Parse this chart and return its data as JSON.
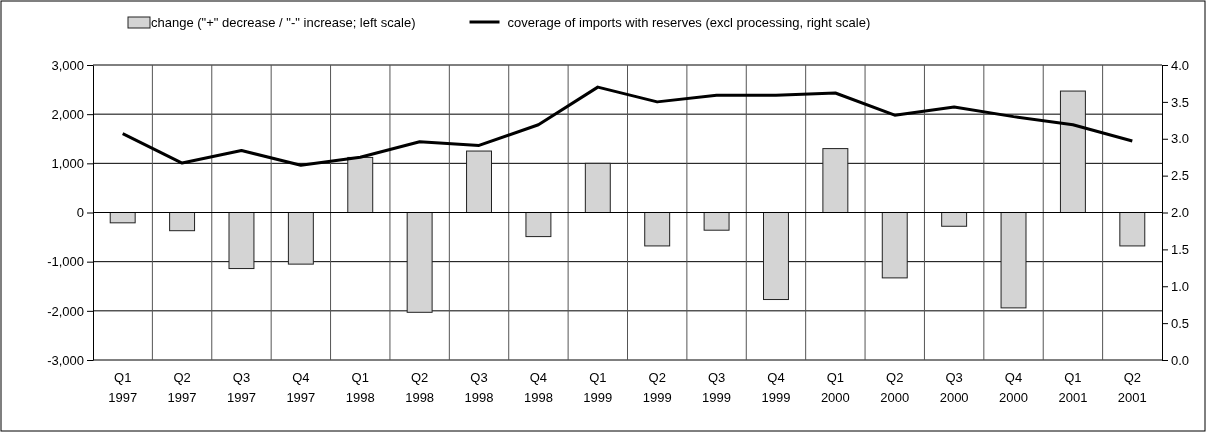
{
  "chart_data": {
    "type": "bar",
    "categories": [
      "Q1\n1997",
      "Q2\n1997",
      "Q3\n1997",
      "Q4\n1997",
      "Q1\n1998",
      "Q2\n1998",
      "Q3\n1998",
      "Q4\n1998",
      "Q1\n1999",
      "Q2\n1999",
      "Q3\n1999",
      "Q4\n1999",
      "Q1\n2000",
      "Q2\n2000",
      "Q3\n2000",
      "Q4\n2000",
      "Q1\n2001",
      "Q2\n2001"
    ],
    "series": [
      {
        "name": "change (\"+\" decrease / \"-\" increase; left scale)",
        "color": "#d4d4d4",
        "values": [
          -210,
          -370,
          -1140,
          -1050,
          1120,
          -2030,
          1250,
          -490,
          1000,
          -680,
          -360,
          -1770,
          1300,
          -1330,
          -280,
          -1940,
          2470,
          -680
        ]
      },
      {
        "name": "coverage of imports with reserves (excl processing, right scale)",
        "type": "line",
        "axis": "y2",
        "color": "#000000",
        "values": [
          3.07,
          2.67,
          2.84,
          2.64,
          2.75,
          2.96,
          2.91,
          3.19,
          3.7,
          3.5,
          3.59,
          3.59,
          3.62,
          3.32,
          3.43,
          3.3,
          3.19,
          2.97
        ]
      }
    ],
    "ylim": [
      -3000,
      3000
    ],
    "yticks": [
      {
        "value": -3000,
        "label": "-3,000"
      },
      {
        "value": -2000,
        "label": "-2,000"
      },
      {
        "value": -1000,
        "label": "-1,000"
      },
      0,
      {
        "value": 1000,
        "label": "1,000"
      },
      {
        "value": 2000,
        "label": "2,000"
      },
      {
        "value": 3000,
        "label": "3,000"
      }
    ],
    "y2lim": [
      0,
      4
    ],
    "y2ticks": [
      {
        "value": 0,
        "label": "0.0"
      },
      {
        "value": 0.5,
        "label": "0.5"
      },
      {
        "value": 1,
        "label": "1.0"
      },
      {
        "value": 1.5,
        "label": "1.5"
      },
      {
        "value": 2,
        "label": "2.0"
      },
      {
        "value": 2.5,
        "label": "2.5"
      },
      {
        "value": 3,
        "label": "3.0"
      },
      {
        "value": 3.5,
        "label": "3.5"
      },
      {
        "value": 4,
        "label": "4.0"
      }
    ],
    "grid": true,
    "legend": "top"
  }
}
